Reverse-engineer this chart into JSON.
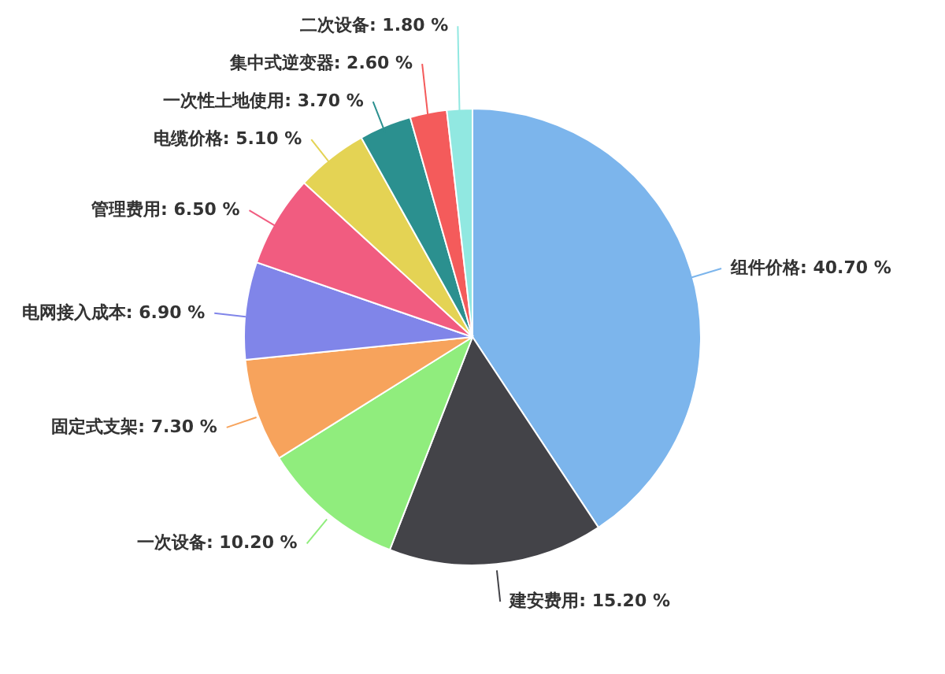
{
  "chart_data": {
    "type": "pie",
    "categories": [
      "组件价格",
      "建安费用",
      "一次设备",
      "固定式支架",
      "电网接入成本",
      "管理费用",
      "电缆价格",
      "一次性土地使用",
      "集中式逆变器",
      "二次设备"
    ],
    "values": [
      40.7,
      15.2,
      10.2,
      7.3,
      6.9,
      6.5,
      5.1,
      3.7,
      2.6,
      1.8
    ],
    "value_labels": [
      "40.70 %",
      "15.20 %",
      "10.20 %",
      "7.30 %",
      "6.90 %",
      "6.50 %",
      "5.10 %",
      "3.70 %",
      "2.60 %",
      "1.80 %"
    ],
    "colors": [
      "#7cb5ec",
      "#434348",
      "#90ed7d",
      "#f7a35c",
      "#8085e9",
      "#f15c80",
      "#e4d354",
      "#2b908f",
      "#f45b5b",
      "#91e8e1"
    ]
  }
}
